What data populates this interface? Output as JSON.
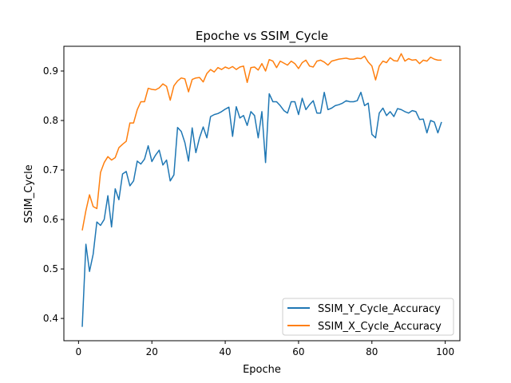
{
  "chart_data": {
    "type": "line",
    "title": "Epoche vs SSIM_Cycle",
    "xlabel": "Epoche",
    "ylabel": "SSIM_Cycle",
    "xlim": [
      -4,
      104
    ],
    "ylim": [
      0.355,
      0.95
    ],
    "xticks": [
      0,
      20,
      40,
      60,
      80,
      100
    ],
    "yticks": [
      0.4,
      0.5,
      0.6,
      0.7,
      0.8,
      0.9
    ],
    "xtick_labels": [
      "0",
      "20",
      "40",
      "60",
      "80",
      "100"
    ],
    "ytick_labels": [
      "0.4",
      "0.5",
      "0.6",
      "0.7",
      "0.8",
      "0.9"
    ],
    "grid": false,
    "legend": "bottom-right",
    "x": [
      1,
      2,
      3,
      4,
      5,
      6,
      7,
      8,
      9,
      10,
      11,
      12,
      13,
      14,
      15,
      16,
      17,
      18,
      19,
      20,
      21,
      22,
      23,
      24,
      25,
      26,
      27,
      28,
      29,
      30,
      31,
      32,
      33,
      34,
      35,
      36,
      37,
      38,
      39,
      40,
      41,
      42,
      43,
      44,
      45,
      46,
      47,
      48,
      49,
      50,
      51,
      52,
      53,
      54,
      55,
      56,
      57,
      58,
      59,
      60,
      61,
      62,
      63,
      64,
      65,
      66,
      67,
      68,
      69,
      70,
      71,
      72,
      73,
      74,
      75,
      76,
      77,
      78,
      79,
      80,
      81,
      82,
      83,
      84,
      85,
      86,
      87,
      88,
      89,
      90,
      91,
      92,
      93,
      94,
      95,
      96,
      97,
      98,
      99
    ],
    "series": [
      {
        "name": "SSIM_Y_Cycle_Accuracy",
        "color": "#1f77b4",
        "values": [
          0.383,
          0.55,
          0.495,
          0.53,
          0.595,
          0.588,
          0.6,
          0.648,
          0.585,
          0.662,
          0.64,
          0.692,
          0.697,
          0.668,
          0.678,
          0.718,
          0.712,
          0.722,
          0.749,
          0.717,
          0.73,
          0.74,
          0.71,
          0.72,
          0.678,
          0.69,
          0.786,
          0.778,
          0.755,
          0.718,
          0.785,
          0.735,
          0.765,
          0.787,
          0.765,
          0.808,
          0.812,
          0.814,
          0.818,
          0.823,
          0.827,
          0.768,
          0.828,
          0.805,
          0.81,
          0.79,
          0.818,
          0.81,
          0.765,
          0.818,
          0.715,
          0.854,
          0.838,
          0.838,
          0.83,
          0.82,
          0.815,
          0.838,
          0.838,
          0.812,
          0.845,
          0.822,
          0.832,
          0.84,
          0.815,
          0.815,
          0.857,
          0.822,
          0.825,
          0.83,
          0.832,
          0.835,
          0.84,
          0.838,
          0.838,
          0.84,
          0.857,
          0.83,
          0.835,
          0.772,
          0.765,
          0.815,
          0.825,
          0.81,
          0.818,
          0.808,
          0.824,
          0.822,
          0.818,
          0.815,
          0.82,
          0.818,
          0.802,
          0.803,
          0.775,
          0.8,
          0.797,
          0.775,
          0.797
        ]
      },
      {
        "name": "SSIM_X_Cycle_Accuracy",
        "color": "#ff7f0e",
        "values": [
          0.578,
          0.618,
          0.65,
          0.626,
          0.622,
          0.695,
          0.715,
          0.727,
          0.72,
          0.725,
          0.745,
          0.752,
          0.758,
          0.795,
          0.795,
          0.822,
          0.838,
          0.838,
          0.865,
          0.863,
          0.862,
          0.866,
          0.874,
          0.869,
          0.841,
          0.87,
          0.88,
          0.886,
          0.884,
          0.858,
          0.883,
          0.886,
          0.887,
          0.878,
          0.895,
          0.903,
          0.898,
          0.907,
          0.903,
          0.908,
          0.905,
          0.909,
          0.903,
          0.908,
          0.91,
          0.877,
          0.907,
          0.908,
          0.902,
          0.915,
          0.9,
          0.923,
          0.92,
          0.907,
          0.92,
          0.916,
          0.912,
          0.92,
          0.915,
          0.905,
          0.917,
          0.922,
          0.91,
          0.908,
          0.92,
          0.922,
          0.918,
          0.912,
          0.92,
          0.922,
          0.924,
          0.925,
          0.926,
          0.924,
          0.924,
          0.926,
          0.925,
          0.93,
          0.918,
          0.91,
          0.882,
          0.91,
          0.92,
          0.917,
          0.927,
          0.921,
          0.92,
          0.935,
          0.92,
          0.925,
          0.922,
          0.923,
          0.915,
          0.922,
          0.92,
          0.928,
          0.924,
          0.922,
          0.922
        ]
      }
    ]
  }
}
